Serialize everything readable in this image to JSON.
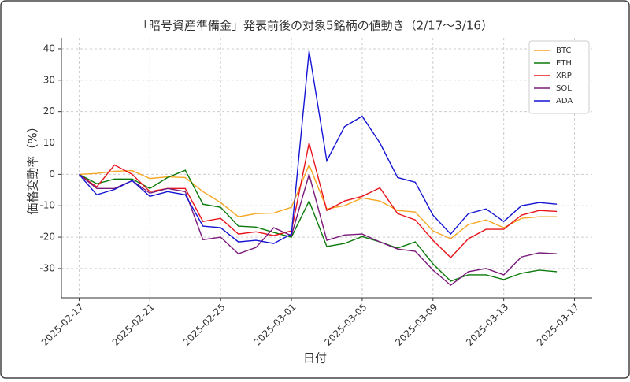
{
  "chart_data": {
    "type": "line",
    "title": "「暗号資産準備金」発表前後の対象5銘柄の値動き（2/17〜3/16）",
    "xlabel": "日付",
    "ylabel": "価格変動率（%）",
    "x": [
      "2025-02-17",
      "2025-02-18",
      "2025-02-19",
      "2025-02-20",
      "2025-02-21",
      "2025-02-22",
      "2025-02-23",
      "2025-02-24",
      "2025-02-25",
      "2025-02-26",
      "2025-02-27",
      "2025-02-28",
      "2025-03-01",
      "2025-03-02",
      "2025-03-03",
      "2025-03-04",
      "2025-03-05",
      "2025-03-06",
      "2025-03-07",
      "2025-03-08",
      "2025-03-09",
      "2025-03-10",
      "2025-03-11",
      "2025-03-12",
      "2025-03-13",
      "2025-03-14",
      "2025-03-15",
      "2025-03-16"
    ],
    "series": [
      {
        "name": "BTC",
        "color": "#f5a623",
        "values": [
          0,
          0.3,
          1,
          1.2,
          -1.3,
          -0.8,
          -1,
          -5.5,
          -9,
          -13.5,
          -12.5,
          -12.3,
          -10.5,
          3,
          -11,
          -10,
          -7.5,
          -8.5,
          -11.5,
          -12,
          -18,
          -20.5,
          -16,
          -14.5,
          -17,
          -14,
          -13.5,
          -13.5
        ]
      },
      {
        "name": "ETH",
        "color": "#0a7a0a",
        "values": [
          0,
          -3,
          -1.5,
          -1.5,
          -4.5,
          -1,
          1.3,
          -9.5,
          -10.5,
          -16.5,
          -16.8,
          -18.5,
          -20,
          -8.5,
          -23,
          -22,
          -19.8,
          -21.5,
          -23.5,
          -21.5,
          -28.5,
          -34,
          -32,
          -32,
          -33.5,
          -31.5,
          -30.5,
          -31
        ]
      },
      {
        "name": "XRP",
        "color": "#e8141c",
        "values": [
          0,
          -4,
          3,
          0,
          -5.5,
          -4.5,
          -4.5,
          -15,
          -14,
          -19,
          -18.3,
          -19.5,
          -18,
          10,
          -11.5,
          -8.5,
          -7,
          -4.3,
          -12.5,
          -14.5,
          -21,
          -26.5,
          -20.5,
          -17.5,
          -17.5,
          -13,
          -11.5,
          -11.8
        ]
      },
      {
        "name": "SOL",
        "color": "#7a1a7a",
        "values": [
          0,
          -4.5,
          -4.5,
          -2,
          -6,
          -4.5,
          -5.5,
          -20.8,
          -20,
          -25.3,
          -23.3,
          -17,
          -19.5,
          0,
          -21,
          -19.3,
          -19,
          -21.5,
          -23.8,
          -24.5,
          -30.5,
          -35.3,
          -31,
          -30,
          -32,
          -26.3,
          -25,
          -25.3
        ]
      },
      {
        "name": "ADA",
        "color": "#1414d4",
        "values": [
          0,
          -6.5,
          -4.8,
          -2,
          -7,
          -5.5,
          -6.5,
          -16.5,
          -17,
          -21.5,
          -21,
          -22,
          -19,
          39.3,
          4.3,
          15.2,
          18.5,
          10,
          -1,
          -2.5,
          -13,
          -19,
          -12.5,
          -11,
          -15,
          -10,
          -9,
          -9.5
        ]
      }
    ],
    "xlim": [
      "2025-02-16",
      "2025-03-18"
    ],
    "xticks": [
      "2025-02-17",
      "2025-02-21",
      "2025-02-25",
      "2025-03-01",
      "2025-03-05",
      "2025-03-09",
      "2025-03-13",
      "2025-03-17"
    ],
    "ylim": [
      -39.3,
      43.5
    ],
    "yticks": [
      -30,
      -20,
      -10,
      0,
      10,
      20,
      30,
      40
    ],
    "grid": true,
    "legend": "upper right"
  }
}
